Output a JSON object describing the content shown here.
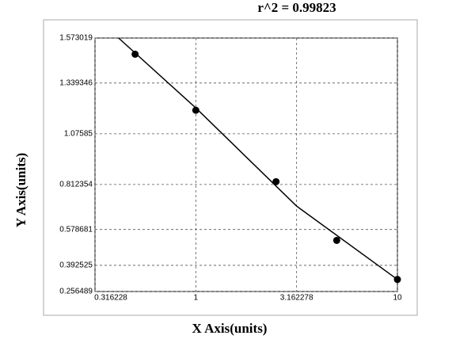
{
  "chart_data": {
    "type": "scatter",
    "title": "r^2  =  0.99823",
    "x_label": "X Axis(units)",
    "y_label": "Y Axis(units)",
    "x_scale": "log",
    "y_scale": "linear",
    "grid": true,
    "xlim": [
      0.316228,
      10
    ],
    "xticks": [
      0.316228,
      1,
      3.162278,
      10
    ],
    "ylim": [
      0.256489,
      1.573019
    ],
    "yticks": [
      0.256489,
      0.392525,
      0.578681,
      0.812354,
      1.07585,
      1.339346,
      1.573019
    ],
    "series": [
      {
        "kind": "points",
        "color": "#000000",
        "x": [
          0.5,
          1,
          2.5,
          5,
          10
        ],
        "values": [
          1.489,
          1.198,
          0.827,
          0.522,
          0.319
        ]
      },
      {
        "kind": "line",
        "color": "#000000",
        "x": [
          0.414,
          1,
          3.162278,
          10
        ],
        "values": [
          1.573,
          1.21,
          0.7,
          0.319
        ]
      }
    ]
  }
}
